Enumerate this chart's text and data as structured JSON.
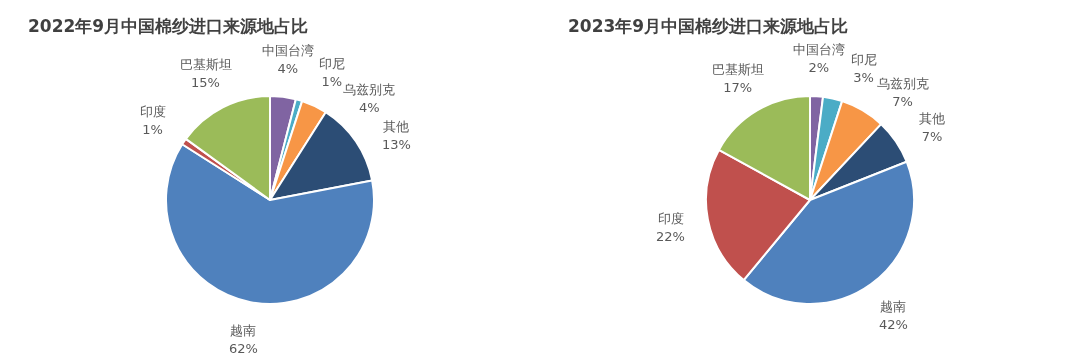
{
  "chart_data": [
    {
      "type": "pie",
      "title": "2022年9月中国棉纱进口来源地占比",
      "categories": [
        "中国台湾",
        "印尼",
        "乌兹别克",
        "其他",
        "越南",
        "印度",
        "巴基斯坦"
      ],
      "values": [
        4,
        1,
        4,
        13,
        62,
        1,
        15
      ],
      "colors": [
        "#8064a2",
        "#4bacc6",
        "#f79646",
        "#2c4d75",
        "#4f81bd",
        "#c0504d",
        "#9bbb59"
      ],
      "value_labels": [
        "4%",
        "1%",
        "4%",
        "13%",
        "62%",
        "1%",
        "15%"
      ]
    },
    {
      "type": "pie",
      "title": "2023年9月中国棉纱进口来源地占比",
      "categories": [
        "中国台湾",
        "印尼",
        "乌兹别克",
        "其他",
        "越南",
        "印度",
        "巴基斯坦"
      ],
      "values": [
        2,
        3,
        7,
        7,
        42,
        22,
        17
      ],
      "colors": [
        "#8064a2",
        "#4bacc6",
        "#f79646",
        "#2c4d75",
        "#4f81bd",
        "#c0504d",
        "#9bbb59"
      ],
      "value_labels": [
        "2%",
        "3%",
        "7%",
        "7%",
        "42%",
        "22%",
        "17%"
      ]
    }
  ]
}
